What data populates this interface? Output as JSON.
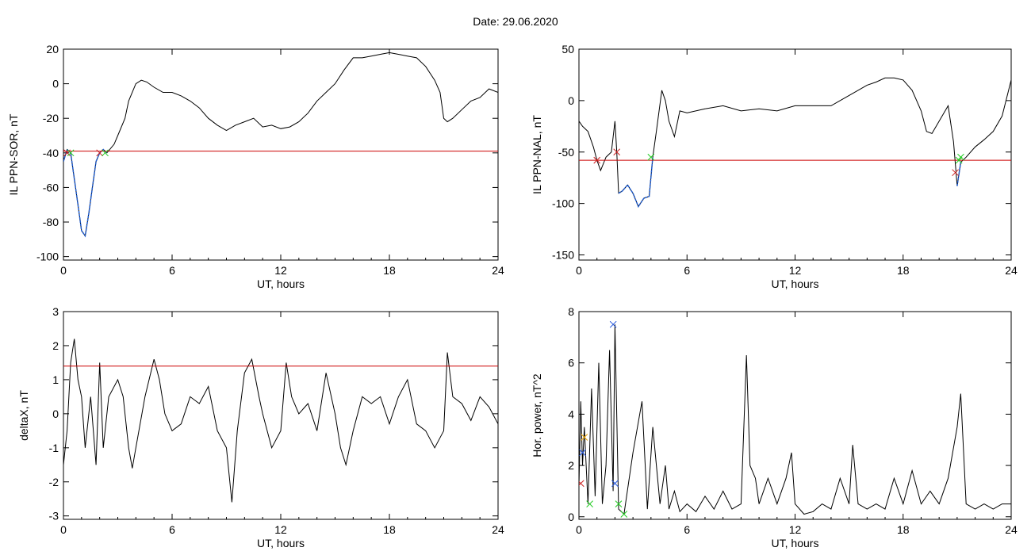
{
  "header": {
    "date_label": "Date:  29.06.2020"
  },
  "colors": {
    "trace": "#000000",
    "threshold": "#cc0000",
    "highlight": "#1f5fd6",
    "marker_start": "#cc2222",
    "marker_end": "#22cc22",
    "marker_peak": "#2255dd",
    "marker_alt": "#e8a000"
  },
  "chart_data": [
    {
      "id": "il-sor",
      "type": "line",
      "xlabel": "UT, hours",
      "ylabel": "IL PPN-SOR, nT",
      "xlim": [
        0,
        24
      ],
      "ylim": [
        -102,
        20
      ],
      "xticks": [
        0,
        6,
        12,
        18,
        24
      ],
      "yticks": [
        20,
        0,
        -20,
        -40,
        -60,
        -80,
        -100
      ],
      "threshold": -39,
      "series": [
        {
          "x": [
            0,
            0.2,
            0.4,
            0.6,
            0.8,
            1.0,
            1.2,
            1.4,
            1.6,
            1.8,
            2.0,
            2.2,
            2.4,
            2.8,
            3.0,
            3.4,
            3.6,
            4.0,
            4.3,
            4.6,
            5.0,
            5.5,
            6.0,
            6.5,
            7.0,
            7.5,
            8.0,
            8.5,
            9.0,
            9.5,
            10.0,
            10.5,
            11.0,
            11.5,
            12.0,
            12.5,
            13.0,
            13.5,
            14.0,
            14.5,
            15.0,
            15.5,
            16.0,
            16.5,
            17.0,
            17.5,
            18.0,
            18.5,
            19.0,
            19.5,
            20.0,
            20.5,
            20.8,
            21.0,
            21.2,
            21.5,
            22.0,
            22.5,
            23.0,
            23.5,
            24.0
          ],
          "y": [
            -45,
            -38,
            -40,
            -55,
            -70,
            -85,
            -88,
            -75,
            -60,
            -45,
            -40,
            -38,
            -40,
            -35,
            -30,
            -20,
            -10,
            0,
            2,
            1,
            -2,
            -5,
            -5,
            -7,
            -10,
            -14,
            -20,
            -24,
            -27,
            -24,
            -22,
            -20,
            -25,
            -24,
            -26,
            -25,
            -22,
            -17,
            -10,
            -5,
            0,
            8,
            15,
            15,
            16,
            17,
            18,
            17,
            16,
            15,
            10,
            2,
            -5,
            -20,
            -22,
            -20,
            -15,
            -10,
            -8,
            -3,
            -5
          ]
        }
      ],
      "highlight_segments": [
        [
          0.0,
          2.4
        ]
      ],
      "markers": [
        {
          "x": 0.2,
          "y": -40,
          "kind": "start"
        },
        {
          "x": 0.4,
          "y": -40,
          "kind": "end"
        },
        {
          "x": 2.0,
          "y": -40,
          "kind": "start"
        },
        {
          "x": 2.3,
          "y": -40,
          "kind": "end"
        }
      ]
    },
    {
      "id": "il-nal",
      "type": "line",
      "xlabel": "UT, hours",
      "ylabel": "IL PPN-NAL, nT",
      "xlim": [
        0,
        24
      ],
      "ylim": [
        -155,
        50
      ],
      "xticks": [
        0,
        6,
        12,
        18,
        24
      ],
      "yticks": [
        50,
        0,
        -50,
        -100,
        -150
      ],
      "threshold": -58,
      "series": [
        {
          "x": [
            0,
            0.2,
            0.5,
            0.8,
            1.0,
            1.2,
            1.5,
            1.8,
            2.0,
            2.1,
            2.2,
            2.4,
            2.7,
            3.0,
            3.3,
            3.6,
            3.9,
            4.1,
            4.3,
            4.6,
            4.8,
            5.0,
            5.3,
            5.6,
            6,
            7,
            8,
            9,
            10,
            11,
            12,
            13,
            14,
            15,
            16,
            16.5,
            17,
            17.5,
            18,
            18.5,
            19,
            19.3,
            19.6,
            20,
            20.5,
            20.8,
            21.0,
            21.2,
            21.5,
            22,
            22.5,
            23,
            23.5,
            24
          ],
          "y": [
            -20,
            -25,
            -30,
            -45,
            -58,
            -68,
            -55,
            -50,
            -20,
            -50,
            -90,
            -88,
            -82,
            -90,
            -103,
            -95,
            -93,
            -55,
            -30,
            10,
            0,
            -20,
            -35,
            -10,
            -12,
            -8,
            -5,
            -10,
            -8,
            -10,
            -5,
            -5,
            -5,
            5,
            15,
            18,
            22,
            22,
            20,
            10,
            -10,
            -30,
            -32,
            -20,
            -5,
            -40,
            -83,
            -60,
            -55,
            -45,
            -38,
            -30,
            -15,
            20
          ]
        }
      ],
      "highlight_segments": [
        [
          2.2,
          4.1
        ],
        [
          20.9,
          21.3
        ]
      ],
      "markers": [
        {
          "x": 1.0,
          "y": -58,
          "kind": "start"
        },
        {
          "x": 2.1,
          "y": -50,
          "kind": "start"
        },
        {
          "x": 4.0,
          "y": -55,
          "kind": "end"
        },
        {
          "x": 20.9,
          "y": -70,
          "kind": "start"
        },
        {
          "x": 21.1,
          "y": -58,
          "kind": "end"
        },
        {
          "x": 21.2,
          "y": -55,
          "kind": "end"
        }
      ]
    },
    {
      "id": "deltax",
      "type": "line",
      "xlabel": "UT, hours",
      "ylabel": "deltaX, nT",
      "xlim": [
        0,
        24
      ],
      "ylim": [
        -3.1,
        3
      ],
      "xticks": [
        0,
        6,
        12,
        18,
        24
      ],
      "yticks": [
        3,
        2,
        1,
        0,
        -1,
        -2,
        -3
      ],
      "threshold": 1.4,
      "series": [
        {
          "x": [
            0,
            0.2,
            0.4,
            0.6,
            0.8,
            1.0,
            1.2,
            1.5,
            1.8,
            2.0,
            2.2,
            2.5,
            3.0,
            3.3,
            3.6,
            3.8,
            4.0,
            4.5,
            5.0,
            5.3,
            5.6,
            6.0,
            6.5,
            7,
            7.5,
            8,
            8.5,
            9,
            9.3,
            9.6,
            10,
            10.4,
            10.8,
            11,
            11.5,
            12,
            12.3,
            12.6,
            13,
            13.5,
            14,
            14.5,
            15,
            15.3,
            15.6,
            16,
            16.5,
            17,
            17.5,
            18,
            18.5,
            19,
            19.5,
            20,
            20.5,
            21,
            21.2,
            21.5,
            22,
            22.5,
            23,
            23.5,
            24
          ],
          "y": [
            -1.5,
            -0.5,
            1.5,
            2.2,
            1.0,
            0.5,
            -1.0,
            0.5,
            -1.5,
            1.5,
            -1.0,
            0.5,
            1.0,
            0.5,
            -1.0,
            -1.6,
            -1.0,
            0.5,
            1.6,
            1.0,
            0.0,
            -0.5,
            -0.3,
            0.5,
            0.3,
            0.8,
            -0.5,
            -1.0,
            -2.6,
            -0.5,
            1.2,
            1.6,
            0.5,
            0.0,
            -1.0,
            -0.5,
            1.5,
            0.5,
            0.0,
            0.3,
            -0.5,
            1.2,
            0.0,
            -1.0,
            -1.5,
            -0.5,
            0.5,
            0.3,
            0.5,
            -0.3,
            0.5,
            1.0,
            -0.3,
            -0.5,
            -1.0,
            -0.5,
            1.8,
            0.5,
            0.3,
            -0.2,
            0.5,
            0.2,
            -0.3
          ]
        }
      ]
    },
    {
      "id": "hor-power",
      "type": "line",
      "xlabel": "UT, hours",
      "ylabel": "Hor. power, nT^2",
      "xlim": [
        0,
        24
      ],
      "ylim": [
        -0.1,
        8
      ],
      "xticks": [
        0,
        6,
        12,
        18,
        24
      ],
      "yticks": [
        8,
        6,
        4,
        2,
        0
      ],
      "series": [
        {
          "x": [
            0,
            0.1,
            0.2,
            0.3,
            0.5,
            0.7,
            0.9,
            1.1,
            1.3,
            1.5,
            1.7,
            1.9,
            2.0,
            2.2,
            2.5,
            3.0,
            3.5,
            3.8,
            4.1,
            4.5,
            4.8,
            5.0,
            5.3,
            5.6,
            6,
            6.5,
            7,
            7.5,
            8,
            8.5,
            9,
            9.3,
            9.5,
            9.8,
            10,
            10.5,
            11,
            11.5,
            11.8,
            12,
            12.5,
            13,
            13.5,
            14,
            14.5,
            15,
            15.2,
            15.5,
            16,
            16.5,
            17,
            17.5,
            18,
            18.5,
            19,
            19.5,
            20,
            20.5,
            21,
            21.2,
            21.5,
            22,
            22.5,
            23,
            23.5,
            24
          ],
          "y": [
            1.2,
            4.5,
            2.0,
            3.5,
            0.5,
            5.0,
            0.8,
            6.0,
            0.5,
            2.0,
            6.5,
            1.0,
            7.5,
            0.3,
            0.1,
            2.5,
            4.5,
            0.3,
            3.5,
            0.5,
            2.0,
            0.3,
            1.0,
            0.2,
            0.5,
            0.2,
            0.8,
            0.3,
            1.0,
            0.3,
            0.5,
            6.3,
            2.0,
            1.5,
            0.5,
            1.5,
            0.5,
            1.5,
            2.5,
            0.5,
            0.1,
            0.2,
            0.5,
            0.3,
            1.5,
            0.5,
            2.8,
            0.5,
            0.3,
            0.5,
            0.3,
            1.5,
            0.5,
            1.8,
            0.5,
            1.0,
            0.5,
            1.5,
            3.5,
            4.8,
            0.5,
            0.3,
            0.5,
            0.3,
            0.5,
            0.5
          ]
        }
      ],
      "markers": [
        {
          "x": 0.1,
          "y": 1.3,
          "kind": "start"
        },
        {
          "x": 0.2,
          "y": 2.5,
          "kind": "peak"
        },
        {
          "x": 0.3,
          "y": 3.1,
          "kind": "alt"
        },
        {
          "x": 0.6,
          "y": 0.5,
          "kind": "end"
        },
        {
          "x": 1.9,
          "y": 7.5,
          "kind": "peak"
        },
        {
          "x": 2.0,
          "y": 1.3,
          "kind": "peak"
        },
        {
          "x": 2.2,
          "y": 0.5,
          "kind": "end"
        },
        {
          "x": 2.5,
          "y": 0.1,
          "kind": "end"
        }
      ]
    }
  ]
}
